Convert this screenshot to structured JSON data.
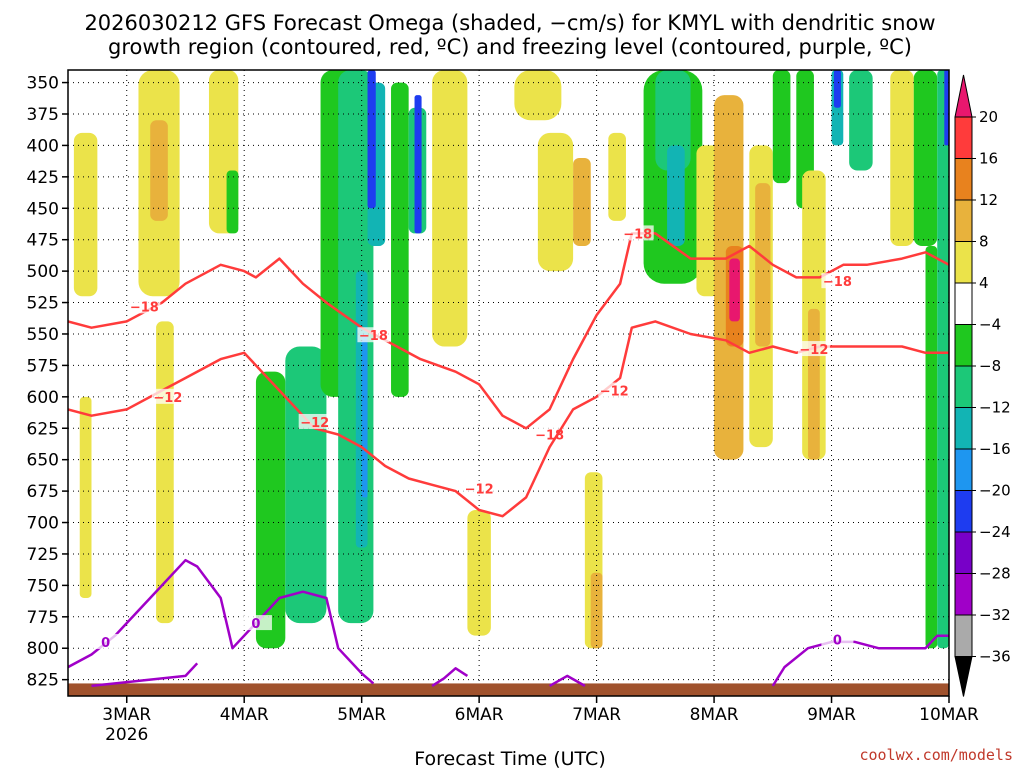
{
  "title": {
    "line1": "2026030212 GFS Forecast Omega (shaded, −cm/s) for KMYL with dendritic snow",
    "line2": "growth region (contoured, red, ºC) and freezing level (contoured, purple, ºC)"
  },
  "xlabel": "Forecast Time (UTC)",
  "credit": "coolwx.com/models",
  "colors": {
    "dgz_contour": "#ff3b3b",
    "freezing_contour": "#a000c8",
    "terrain": "#a0522d",
    "grid": "#000000"
  },
  "chart_data": {
    "type": "heatmap",
    "title": "2026030212 GFS Forecast Omega (shaded, −cm/s) for KMYL with dendritic snow growth region (contoured, red, ºC) and freezing level (contoured, purple, ºC)",
    "xlabel": "Forecast Time (UTC)",
    "ylabel": "",
    "x_range_days": [
      "2026-03-02T12",
      "2026-03-10T00"
    ],
    "x_ticks": [
      {
        "t": 0.5,
        "label": "3MAR",
        "sub": "2026"
      },
      {
        "t": 1.5,
        "label": "4MAR"
      },
      {
        "t": 2.5,
        "label": "5MAR"
      },
      {
        "t": 3.5,
        "label": "6MAR"
      },
      {
        "t": 4.5,
        "label": "7MAR"
      },
      {
        "t": 5.5,
        "label": "8MAR"
      },
      {
        "t": 6.5,
        "label": "9MAR"
      },
      {
        "t": 7.5,
        "label": "10MAR"
      }
    ],
    "y_unit": "hPa",
    "y_range": [
      340,
      838
    ],
    "y_ticks": [
      "350",
      "375",
      "400",
      "425",
      "450",
      "475",
      "500",
      "525",
      "550",
      "575",
      "600",
      "625",
      "650",
      "675",
      "700",
      "725",
      "750",
      "775",
      "800",
      "825"
    ],
    "grid": true,
    "colorbar": {
      "labels": [
        "20",
        "16",
        "12",
        "8",
        "4",
        "−4",
        "−8",
        "−12",
        "−16",
        "−20",
        "−24",
        "−28",
        "−32",
        "−36"
      ],
      "bands": [
        {
          "from": 20,
          "color": "#e8176e"
        },
        {
          "from": 16,
          "to": 20,
          "color": "#ff3b3b"
        },
        {
          "from": 12,
          "to": 16,
          "color": "#e8821e"
        },
        {
          "from": 8,
          "to": 12,
          "color": "#e8b23c"
        },
        {
          "from": 4,
          "to": 8,
          "color": "#ebe34a"
        },
        {
          "from": -4,
          "to": 4,
          "color": "#ffffff"
        },
        {
          "from": -8,
          "to": -4,
          "color": "#1fc81f"
        },
        {
          "from": -12,
          "to": -8,
          "color": "#1cc878"
        },
        {
          "from": -16,
          "to": -12,
          "color": "#12b4b4"
        },
        {
          "from": -20,
          "to": -16,
          "color": "#1e96f0"
        },
        {
          "from": -24,
          "to": -20,
          "color": "#1e3cf0"
        },
        {
          "from": -28,
          "to": -24,
          "color": "#7800c8"
        },
        {
          "from": -32,
          "to": -28,
          "color": "#a000c8"
        },
        {
          "from": -36,
          "to": -32,
          "color": "#aaaaaa"
        },
        {
          "to": -36,
          "color": "#000000"
        }
      ]
    },
    "omega_regions": [
      {
        "t": [
          0.05,
          0.25
        ],
        "p": [
          390,
          520
        ],
        "value": 6
      },
      {
        "t": [
          0.1,
          0.2
        ],
        "p": [
          600,
          760
        ],
        "value": 6
      },
      {
        "t": [
          0.6,
          0.95
        ],
        "p": [
          340,
          520
        ],
        "value": 6
      },
      {
        "t": [
          0.7,
          0.85
        ],
        "p": [
          380,
          460
        ],
        "value": 10
      },
      {
        "t": [
          0.75,
          0.9
        ],
        "p": [
          540,
          780
        ],
        "value": 6
      },
      {
        "t": [
          1.2,
          1.45
        ],
        "p": [
          340,
          470
        ],
        "value": 6
      },
      {
        "t": [
          1.35,
          1.45
        ],
        "p": [
          420,
          470
        ],
        "value": -6
      },
      {
        "t": [
          1.6,
          1.85
        ],
        "p": [
          580,
          800
        ],
        "value": -6
      },
      {
        "t": [
          1.85,
          2.2
        ],
        "p": [
          560,
          780
        ],
        "value": -10
      },
      {
        "t": [
          2.15,
          2.45
        ],
        "p": [
          340,
          600
        ],
        "value": -6
      },
      {
        "t": [
          2.3,
          2.6
        ],
        "p": [
          340,
          780
        ],
        "value": -10
      },
      {
        "t": [
          2.45,
          2.55
        ],
        "p": [
          500,
          720
        ],
        "value": -14
      },
      {
        "t": [
          2.5,
          2.55
        ],
        "p": [
          550,
          680
        ],
        "value": -18
      },
      {
        "t": [
          2.55,
          2.7
        ],
        "p": [
          350,
          480
        ],
        "value": -14
      },
      {
        "t": [
          2.55,
          2.62
        ],
        "p": [
          340,
          450
        ],
        "value": -22
      },
      {
        "t": [
          2.75,
          2.9
        ],
        "p": [
          350,
          600
        ],
        "value": -6
      },
      {
        "t": [
          2.9,
          3.05
        ],
        "p": [
          370,
          470
        ],
        "value": -10
      },
      {
        "t": [
          2.95,
          3.01
        ],
        "p": [
          360,
          470
        ],
        "value": -22
      },
      {
        "t": [
          3.1,
          3.4
        ],
        "p": [
          340,
          560
        ],
        "value": 6
      },
      {
        "t": [
          3.4,
          3.6
        ],
        "p": [
          690,
          790
        ],
        "value": 6
      },
      {
        "t": [
          3.8,
          4.2
        ],
        "p": [
          340,
          380
        ],
        "value": 6
      },
      {
        "t": [
          4.0,
          4.3
        ],
        "p": [
          390,
          500
        ],
        "value": 6
      },
      {
        "t": [
          4.3,
          4.45
        ],
        "p": [
          410,
          480
        ],
        "value": 10
      },
      {
        "t": [
          4.4,
          4.55
        ],
        "p": [
          660,
          800
        ],
        "value": 6
      },
      {
        "t": [
          4.45,
          4.55
        ],
        "p": [
          740,
          800
        ],
        "value": 10
      },
      {
        "t": [
          4.6,
          4.75
        ],
        "p": [
          390,
          460
        ],
        "value": 6
      },
      {
        "t": [
          4.9,
          5.4
        ],
        "p": [
          340,
          510
        ],
        "value": -6
      },
      {
        "t": [
          5.0,
          5.3
        ],
        "p": [
          340,
          420
        ],
        "value": -10
      },
      {
        "t": [
          5.1,
          5.25
        ],
        "p": [
          400,
          480
        ],
        "value": -14
      },
      {
        "t": [
          5.35,
          5.55
        ],
        "p": [
          400,
          520
        ],
        "value": 6
      },
      {
        "t": [
          5.5,
          5.75
        ],
        "p": [
          360,
          650
        ],
        "value": 8
      },
      {
        "t": [
          5.6,
          5.75
        ],
        "p": [
          480,
          560
        ],
        "value": 14
      },
      {
        "t": [
          5.63,
          5.72
        ],
        "p": [
          490,
          540
        ],
        "value": 20
      },
      {
        "t": [
          5.8,
          6.0
        ],
        "p": [
          400,
          640
        ],
        "value": 6
      },
      {
        "t": [
          5.85,
          5.98
        ],
        "p": [
          430,
          560
        ],
        "value": 10
      },
      {
        "t": [
          6.0,
          6.15
        ],
        "p": [
          340,
          430
        ],
        "value": -6
      },
      {
        "t": [
          6.2,
          6.35
        ],
        "p": [
          340,
          450
        ],
        "value": -6
      },
      {
        "t": [
          6.25,
          6.45
        ],
        "p": [
          420,
          650
        ],
        "value": 6
      },
      {
        "t": [
          6.3,
          6.4
        ],
        "p": [
          530,
          650
        ],
        "value": 10
      },
      {
        "t": [
          6.5,
          6.6
        ],
        "p": [
          340,
          400
        ],
        "value": -14
      },
      {
        "t": [
          6.52,
          6.58
        ],
        "p": [
          340,
          370
        ],
        "value": -22
      },
      {
        "t": [
          6.65,
          6.85
        ],
        "p": [
          340,
          420
        ],
        "value": -10
      },
      {
        "t": [
          7.0,
          7.2
        ],
        "p": [
          340,
          480
        ],
        "value": 6
      },
      {
        "t": [
          7.2,
          7.4
        ],
        "p": [
          340,
          480
        ],
        "value": -6
      },
      {
        "t": [
          7.3,
          7.4
        ],
        "p": [
          480,
          800
        ],
        "value": -6
      },
      {
        "t": [
          7.4,
          7.5
        ],
        "p": [
          340,
          800
        ],
        "value": -10
      },
      {
        "t": [
          7.46,
          7.5
        ],
        "p": [
          340,
          400
        ],
        "value": -22
      }
    ],
    "dgz_contours": [
      {
        "level": "−18",
        "points": [
          [
            0.0,
            540
          ],
          [
            0.2,
            545
          ],
          [
            0.5,
            540
          ],
          [
            0.8,
            525
          ],
          [
            1.0,
            510
          ],
          [
            1.3,
            495
          ],
          [
            1.5,
            500
          ],
          [
            1.6,
            505
          ],
          [
            1.8,
            490
          ],
          [
            2.0,
            510
          ],
          [
            2.2,
            525
          ],
          [
            2.5,
            545
          ],
          [
            2.8,
            560
          ],
          [
            3.0,
            570
          ],
          [
            3.3,
            580
          ],
          [
            3.5,
            590
          ],
          [
            3.7,
            615
          ],
          [
            3.9,
            625
          ],
          [
            4.1,
            610
          ],
          [
            4.3,
            570
          ],
          [
            4.5,
            535
          ],
          [
            4.7,
            510
          ],
          [
            4.8,
            470
          ],
          [
            5.0,
            470
          ],
          [
            5.3,
            490
          ],
          [
            5.6,
            490
          ],
          [
            5.8,
            480
          ],
          [
            6.0,
            495
          ],
          [
            6.2,
            505
          ],
          [
            6.4,
            505
          ],
          [
            6.6,
            495
          ],
          [
            6.8,
            495
          ],
          [
            7.1,
            490
          ],
          [
            7.3,
            485
          ],
          [
            7.5,
            495
          ]
        ],
        "labels": [
          [
            0.65,
            528
          ],
          [
            2.6,
            551
          ],
          [
            4.1,
            630
          ],
          [
            4.85,
            470
          ],
          [
            6.55,
            508
          ]
        ]
      },
      {
        "level": "−12",
        "points": [
          [
            0.0,
            610
          ],
          [
            0.2,
            615
          ],
          [
            0.5,
            610
          ],
          [
            0.8,
            595
          ],
          [
            1.0,
            585
          ],
          [
            1.3,
            570
          ],
          [
            1.5,
            565
          ],
          [
            1.7,
            585
          ],
          [
            1.9,
            605
          ],
          [
            2.1,
            625
          ],
          [
            2.3,
            630
          ],
          [
            2.5,
            640
          ],
          [
            2.7,
            655
          ],
          [
            2.9,
            665
          ],
          [
            3.1,
            670
          ],
          [
            3.3,
            675
          ],
          [
            3.5,
            690
          ],
          [
            3.7,
            695
          ],
          [
            3.9,
            680
          ],
          [
            4.1,
            640
          ],
          [
            4.3,
            610
          ],
          [
            4.5,
            600
          ],
          [
            4.7,
            585
          ],
          [
            4.8,
            545
          ],
          [
            5.0,
            540
          ],
          [
            5.3,
            550
          ],
          [
            5.6,
            555
          ],
          [
            5.8,
            565
          ],
          [
            6.0,
            560
          ],
          [
            6.2,
            565
          ],
          [
            6.4,
            560
          ],
          [
            6.6,
            560
          ],
          [
            6.8,
            560
          ],
          [
            7.1,
            560
          ],
          [
            7.3,
            565
          ],
          [
            7.5,
            565
          ]
        ],
        "labels": [
          [
            0.85,
            600
          ],
          [
            2.1,
            620
          ],
          [
            3.5,
            673
          ],
          [
            4.65,
            595
          ],
          [
            6.35,
            562
          ]
        ]
      }
    ],
    "freezing_contours": [
      {
        "level": "0",
        "points": [
          [
            0.0,
            815
          ],
          [
            0.2,
            805
          ],
          [
            0.4,
            790
          ],
          [
            0.6,
            770
          ],
          [
            0.8,
            750
          ],
          [
            1.0,
            730
          ],
          [
            1.1,
            735
          ],
          [
            1.3,
            760
          ],
          [
            1.4,
            800
          ],
          [
            1.6,
            780
          ],
          [
            1.8,
            760
          ],
          [
            2.0,
            755
          ],
          [
            2.2,
            760
          ],
          [
            2.3,
            800
          ],
          [
            2.5,
            820
          ],
          [
            2.6,
            828
          ]
        ],
        "labels": [
          [
            0.32,
            795
          ],
          [
            1.6,
            780
          ]
        ]
      },
      {
        "level": "0",
        "points": [
          [
            6.0,
            830
          ],
          [
            6.1,
            815
          ],
          [
            6.3,
            800
          ],
          [
            6.5,
            795
          ],
          [
            6.7,
            795
          ],
          [
            6.9,
            800
          ],
          [
            7.1,
            800
          ],
          [
            7.3,
            800
          ],
          [
            7.4,
            790
          ],
          [
            7.5,
            790
          ]
        ],
        "labels": [
          [
            6.55,
            793
          ]
        ]
      },
      {
        "level": "0",
        "points": [
          [
            0.2,
            830
          ],
          [
            0.6,
            826
          ],
          [
            1.0,
            822
          ],
          [
            1.1,
            812
          ]
        ],
        "labels": []
      },
      {
        "level": "0",
        "points": [
          [
            3.1,
            830
          ],
          [
            3.2,
            824
          ],
          [
            3.3,
            816
          ],
          [
            3.4,
            822
          ]
        ],
        "labels": []
      },
      {
        "level": "0",
        "points": [
          [
            4.1,
            830
          ],
          [
            4.25,
            822
          ],
          [
            4.4,
            830
          ]
        ],
        "labels": []
      }
    ]
  }
}
